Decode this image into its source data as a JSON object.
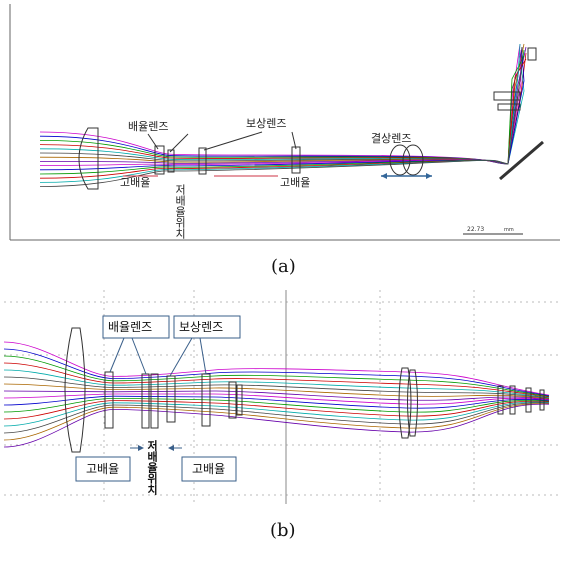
{
  "panel_a": {
    "caption": "(a)",
    "labels": {
      "zoom_lens": "배율렌즈",
      "comp_lens": "보상렌즈",
      "imaging_lens": "결상렌즈",
      "high_mag_left": "고배율",
      "low_mag_pos": "저배율위치",
      "high_mag_right": "고배율",
      "scale_value": "22.73",
      "scale_unit": "mm"
    }
  },
  "panel_b": {
    "caption": "(b)",
    "labels": {
      "zoom_lens": "배율렌즈",
      "comp_lens": "보상렌즈",
      "high_mag_left": "고배율",
      "low_mag_pos": "저배율위치",
      "high_mag_right": "고배율"
    }
  },
  "ray_colors": [
    "#cc00cc",
    "#0000cc",
    "#009900",
    "#cc0000",
    "#00aaaa",
    "#444444",
    "#aa6600",
    "#6600aa"
  ]
}
